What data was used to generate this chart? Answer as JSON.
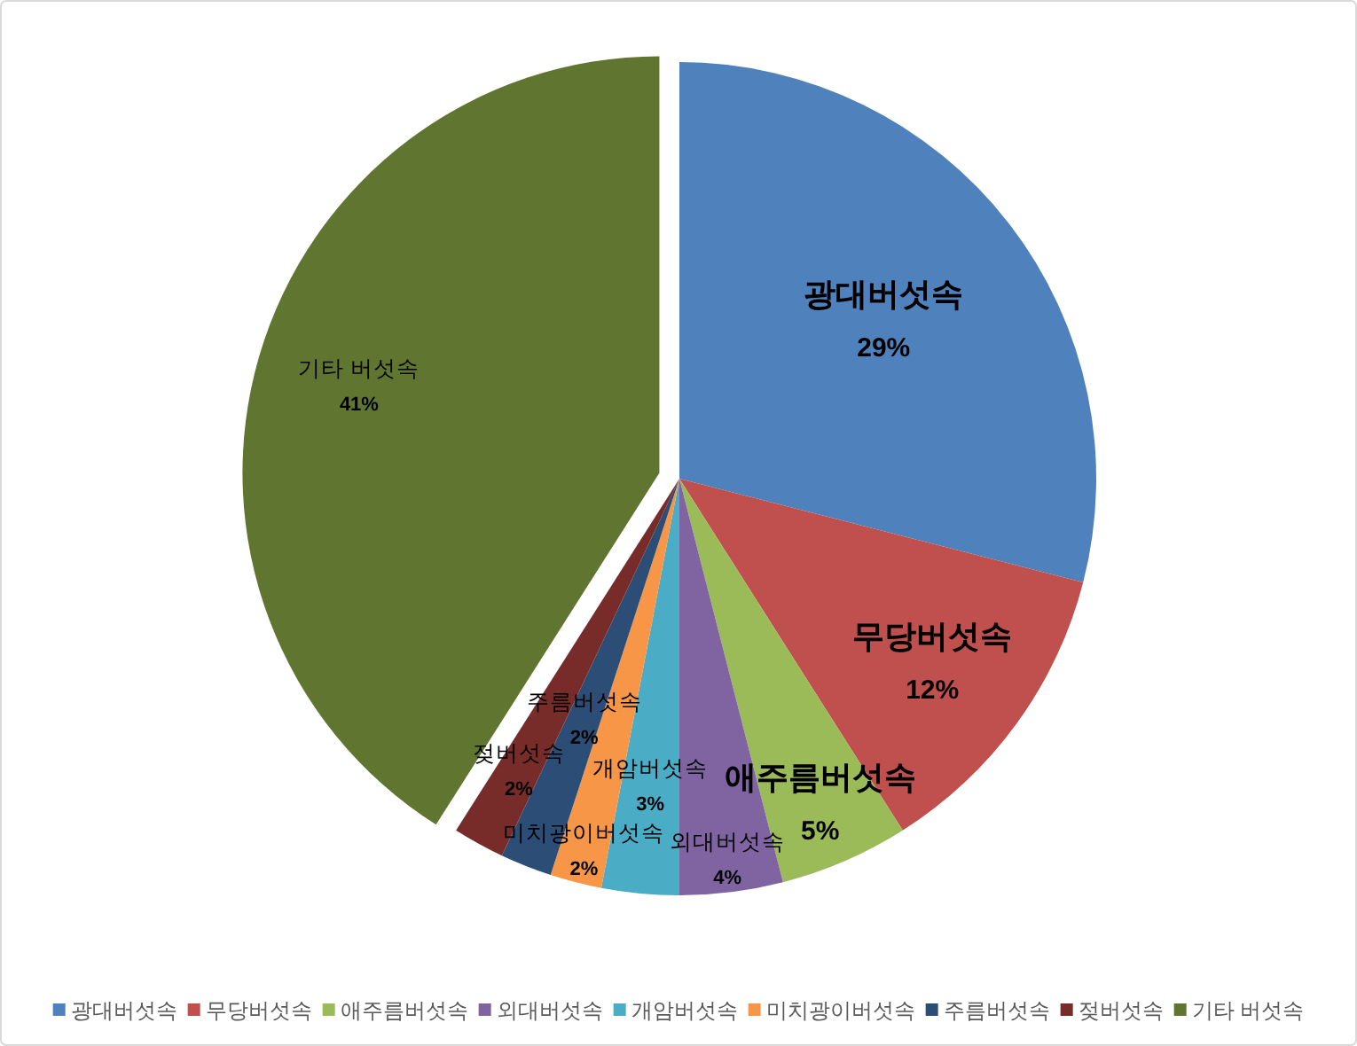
{
  "chart_data": {
    "type": "pie",
    "categories": [
      "광대버섯속",
      "무당버섯속",
      "애주름버섯속",
      "외대버섯속",
      "개암버섯속",
      "미치광이버섯속",
      "주름버섯속",
      "젖버섯속",
      "기타 버섯속"
    ],
    "values": [
      29,
      12,
      5,
      4,
      3,
      2,
      2,
      2,
      41
    ],
    "value_labels": [
      "29%",
      "12%",
      "5%",
      "4%",
      "3%",
      "2%",
      "2%",
      "2%",
      "41%"
    ],
    "colors": [
      "#4f81bd",
      "#c0504d",
      "#9bbb59",
      "#8064a2",
      "#4bacc6",
      "#f79646",
      "#2c4d75",
      "#772c2a",
      "#5f7530"
    ],
    "legend": "bottom"
  }
}
